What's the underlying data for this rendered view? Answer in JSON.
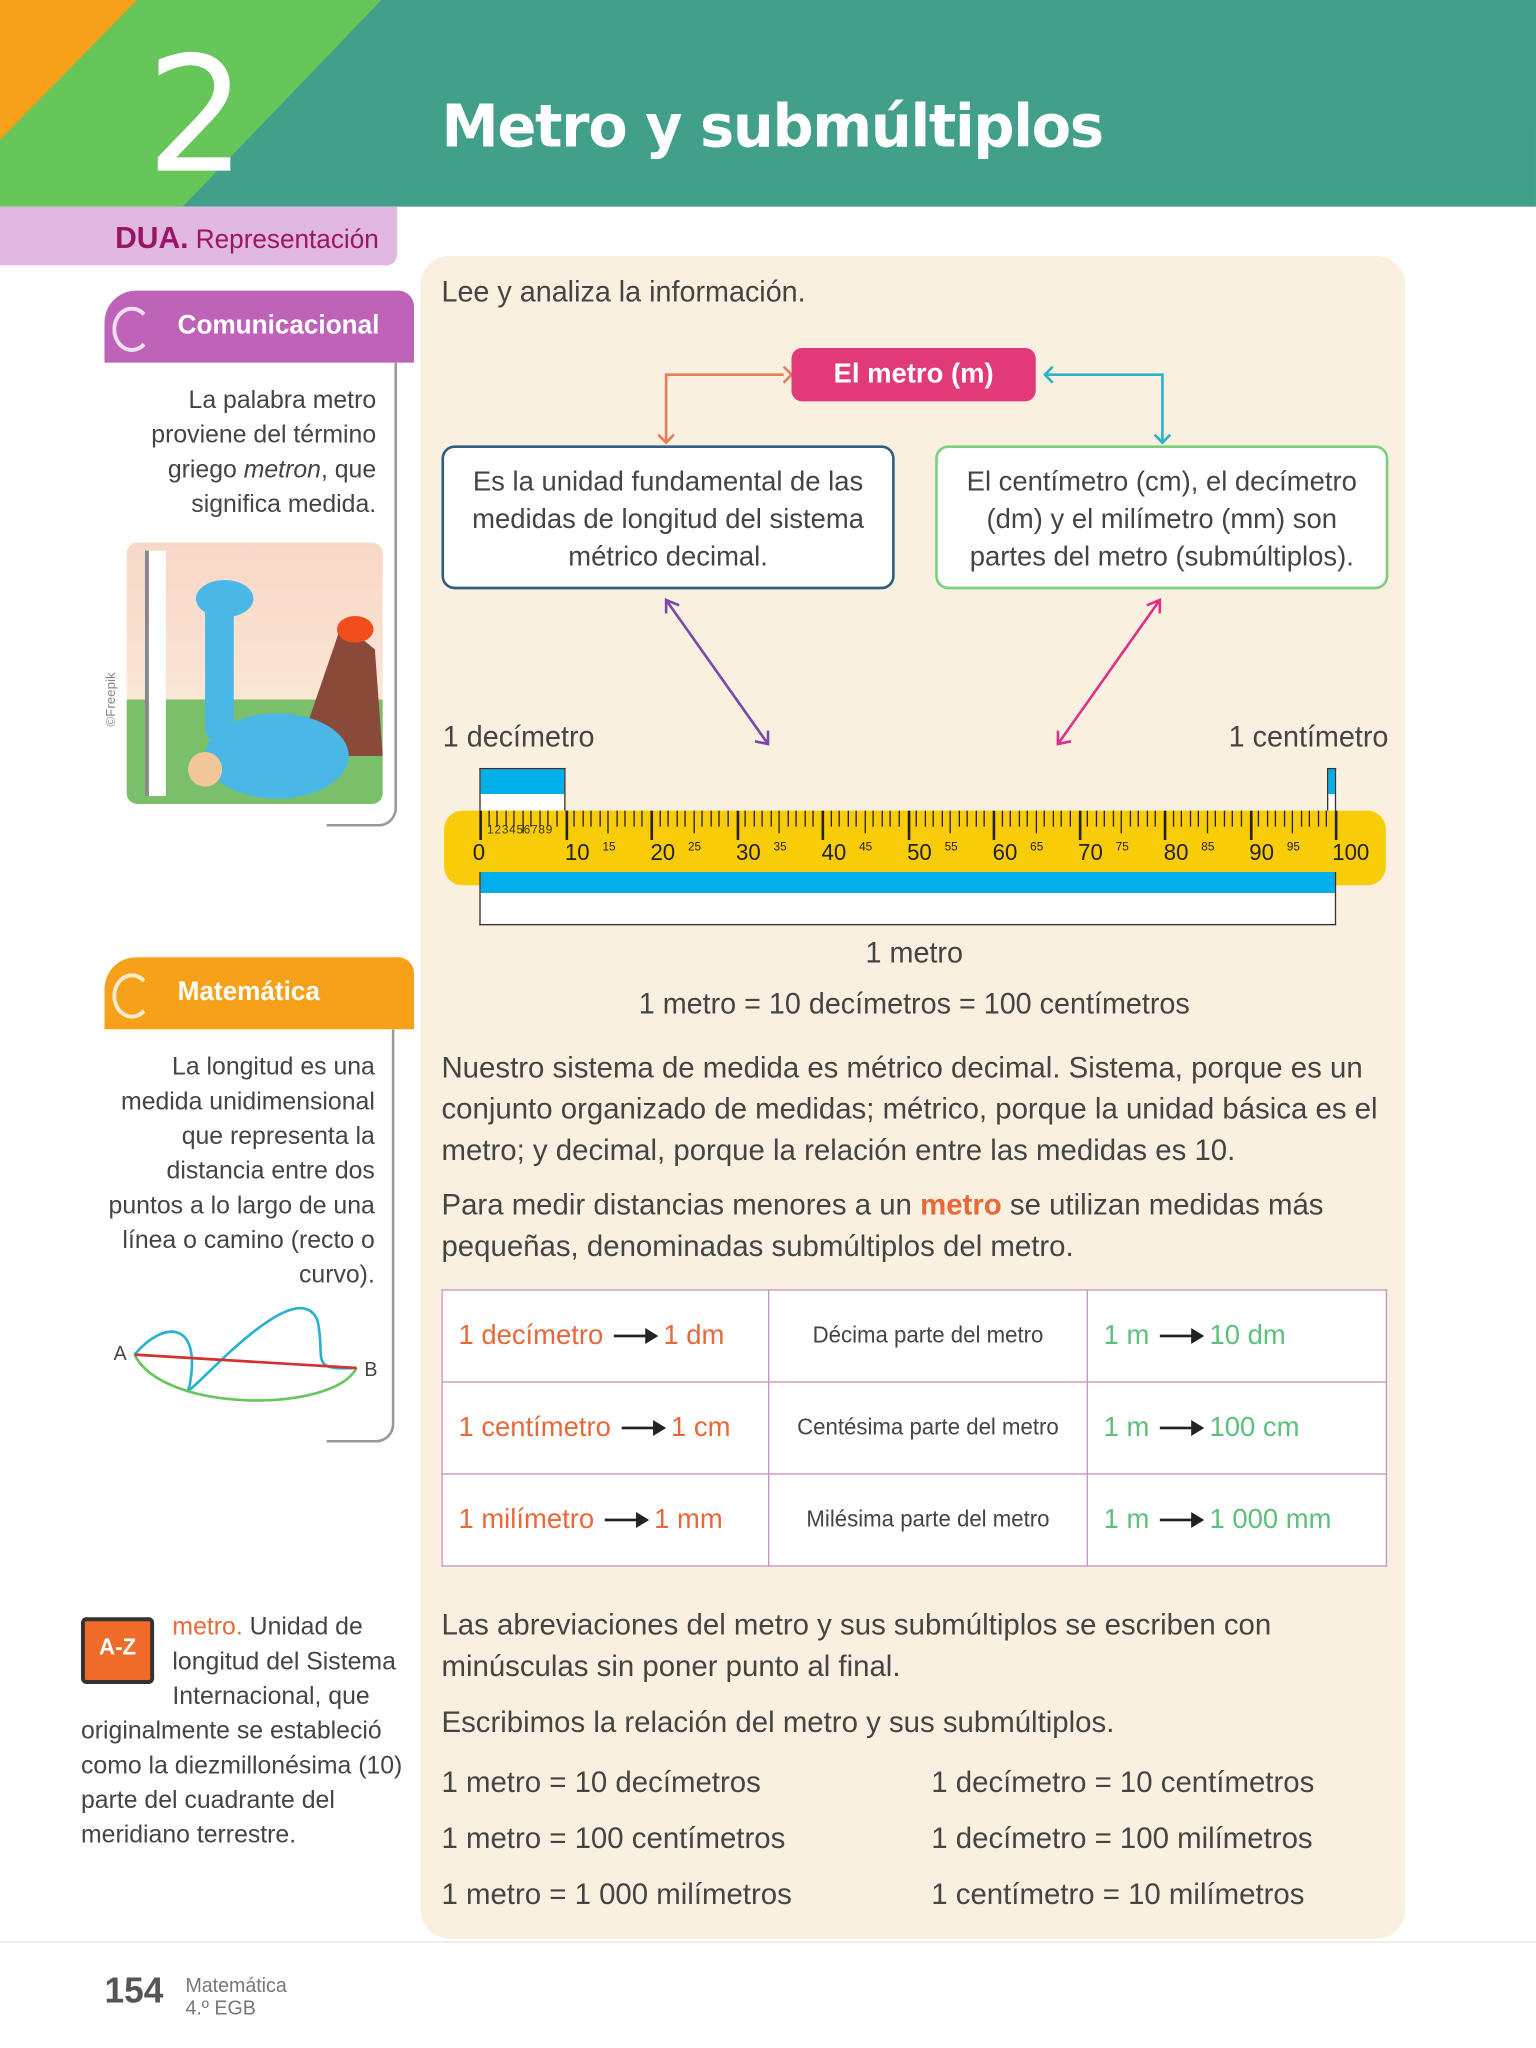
{
  "header": {
    "number": "2",
    "title": "Metro y submúltiplos"
  },
  "dua": {
    "bold": "DUA.",
    "label": " Representación"
  },
  "comunicacional": {
    "tab": "Comunicacional",
    "text_before": "La palabra metro proviene del término griego ",
    "text_italic": "metron",
    "text_after": ", que significa medida.",
    "credit": "©Freepik"
  },
  "matematica": {
    "tab": "Matemática",
    "text": "La longitud es una medida unidimensional que representa la distancia entre dos puntos a lo largo de una línea o camino (recto o curvo).",
    "point_a": "A",
    "point_b": "B"
  },
  "glossary": {
    "icon_text": "A-Z",
    "term": "metro.",
    "definition": " Unidad de longitud del Sistema Internacional, que originalmente se estableció como la diezmillonésima (10) parte del cuadrante del meridiano terrestre."
  },
  "main": {
    "instruction": "Lee y analiza la información.",
    "concept": "El metro (m)",
    "left_box": "Es la unidad fundamental de las medidas de longitud del sistema métrico decimal.",
    "right_box": "El centímetro (cm), el decímetro (dm) y el milímetro (mm) son partes del metro (submúltiplos).",
    "label_dm": "1 decímetro",
    "label_cm": "1 centímetro",
    "label_m": "1 metro",
    "ruler_major": [
      "0",
      "10",
      "20",
      "30",
      "40",
      "50",
      "60",
      "70",
      "80",
      "90",
      "100"
    ],
    "ruler_minor": [
      "15",
      "25",
      "35",
      "45",
      "55",
      "65",
      "75",
      "85",
      "95"
    ],
    "ruler_small": "123456789",
    "equation": "1 metro = 10 decímetros = 100 centímetros",
    "para1": "Nuestro sistema de medida es métrico decimal. Sistema, porque es un conjunto organizado de medidas; métrico, porque la unidad básica es el metro; y decimal, porque la relación entre las medidas es 10.",
    "para2_before": "Para medir distancias menores a un ",
    "para2_highlight": "metro",
    "para2_after": " se utilizan medidas más pequeñas, denominadas submúltiplos del metro.",
    "table": [
      {
        "name": "1 decímetro",
        "abbr": "1 dm",
        "desc": "Décima parte del metro",
        "from": "1 m",
        "to": "10 dm"
      },
      {
        "name": "1 centímetro",
        "abbr": "1 cm",
        "desc": "Centésima parte del metro",
        "from": "1 m",
        "to": "100 cm"
      },
      {
        "name": "1 milímetro",
        "abbr": "1 mm",
        "desc": "Milésima parte del metro",
        "from": "1 m",
        "to": "1 000 mm"
      }
    ],
    "para3": "Las abreviaciones del metro y sus submúltiplos se escriben con minúsculas sin poner punto al final.",
    "para4": "Escribimos la relación del metro y sus submúltiplos.",
    "relations_left": [
      "1 metro = 10 decímetros",
      "1 metro = 100 centímetros",
      "1 metro = 1 000 milímetros"
    ],
    "relations_right": [
      "1 decímetro = 10 centímetros",
      "1 decímetro = 100 milímetros",
      "1 centímetro = 10 milímetros"
    ]
  },
  "footer": {
    "page": "154",
    "subject": "Matemática",
    "grade": "4.º EGB"
  },
  "colors": {
    "teal": "#42a08a",
    "green": "#66c65a",
    "orange": "#f7a11a",
    "pink": "#e23a78",
    "purple": "#bf63b8",
    "ruler": "#f9cc0a",
    "blue": "#00aeea"
  }
}
